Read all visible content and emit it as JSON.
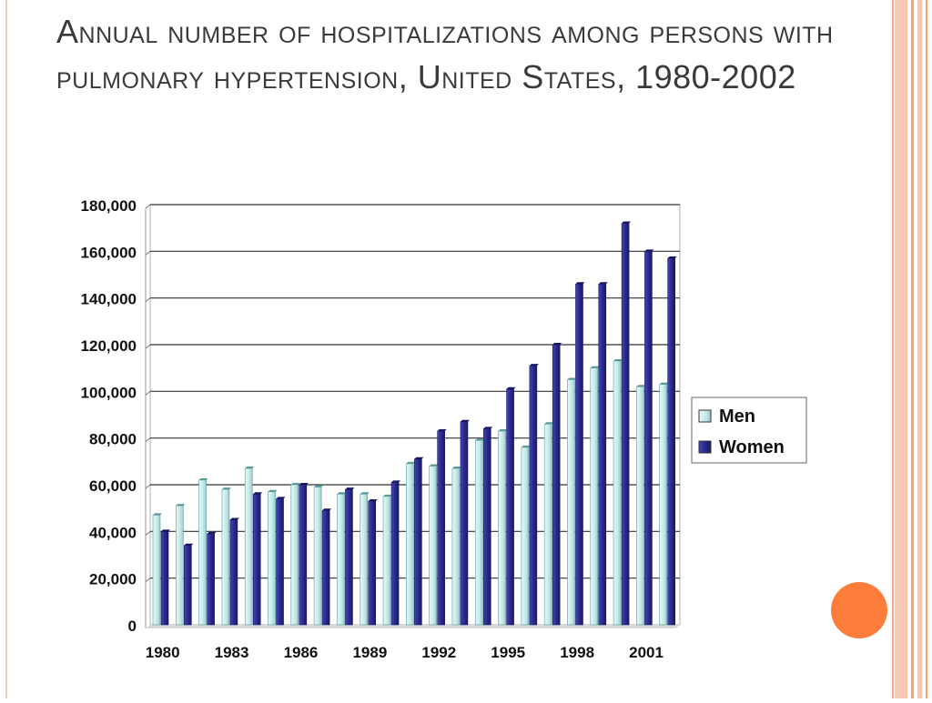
{
  "slide": {
    "title": "Annual number of hospitalizations among persons with pulmonary hypertension, United States, 1980-2002",
    "accent_color": "#f7a27a",
    "stripe_color": "#f9c8b3",
    "circle_color": "#ff7d3b"
  },
  "chart_data": {
    "type": "bar",
    "title": "",
    "xlabel": "",
    "ylabel": "",
    "ylim": [
      0,
      180000
    ],
    "yticks": [
      0,
      20000,
      40000,
      60000,
      80000,
      100000,
      120000,
      140000,
      160000,
      180000
    ],
    "ytick_labels": [
      "0",
      "20,000",
      "40,000",
      "60,000",
      "80,000",
      "100,000",
      "120,000",
      "140,000",
      "160,000",
      "180,000"
    ],
    "categories": [
      "1980",
      "1981",
      "1982",
      "1983",
      "1984",
      "1985",
      "1986",
      "1987",
      "1988",
      "1989",
      "1990",
      "1991",
      "1992",
      "1993",
      "1994",
      "1995",
      "1996",
      "1997",
      "1998",
      "1999",
      "2000",
      "2001",
      "2002"
    ],
    "xtick_labels": [
      "1980",
      "1983",
      "1986",
      "1989",
      "1992",
      "1995",
      "1998",
      "2001"
    ],
    "grid": true,
    "legend_position": "right",
    "series": [
      {
        "name": "Men",
        "color": "#c6ecec",
        "values": [
          47000,
          51000,
          62000,
          58000,
          67000,
          57000,
          60000,
          59000,
          56000,
          56000,
          55000,
          69000,
          68000,
          67000,
          79000,
          83000,
          76000,
          86000,
          105000,
          110000,
          113000,
          102000,
          103000
        ]
      },
      {
        "name": "Women",
        "color": "#2d2d8f",
        "values": [
          40000,
          34000,
          39000,
          45000,
          56000,
          54000,
          60000,
          49000,
          58000,
          53000,
          61000,
          71000,
          83000,
          87000,
          84000,
          101000,
          111000,
          120000,
          146000,
          146000,
          172000,
          160000,
          157000
        ]
      }
    ]
  }
}
